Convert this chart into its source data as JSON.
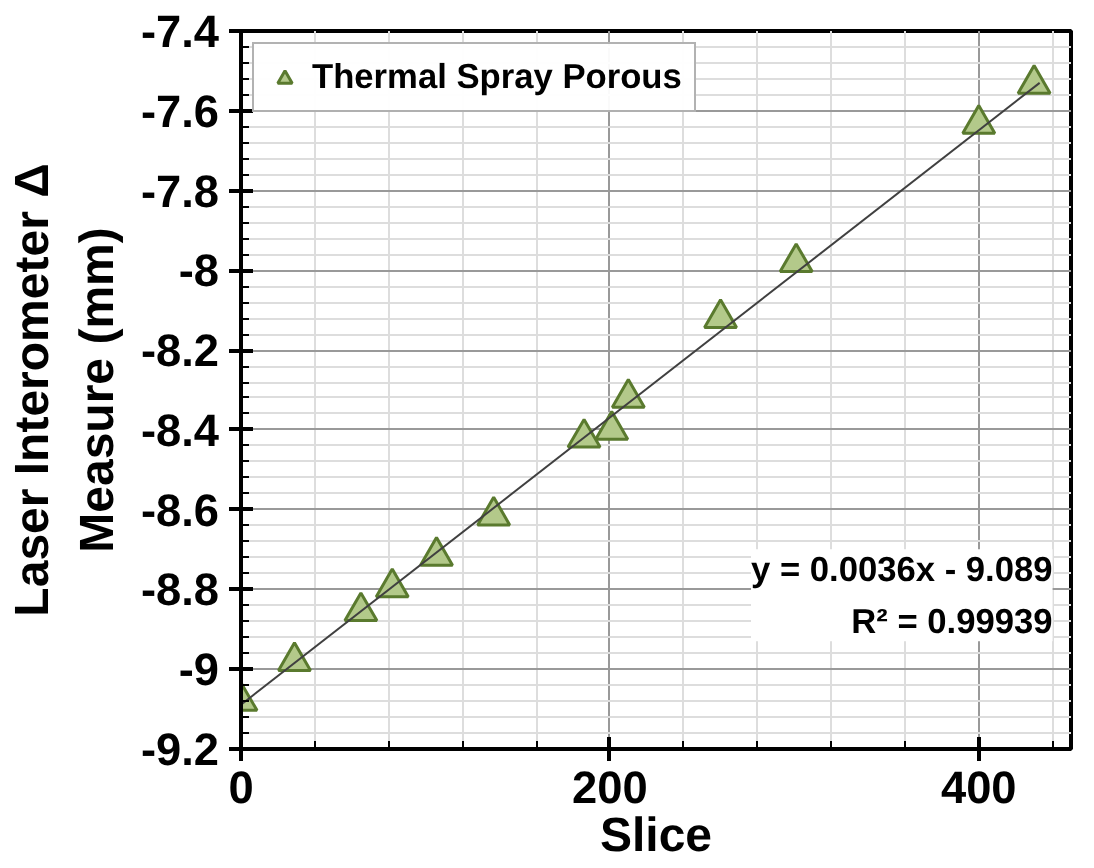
{
  "chart_data": {
    "type": "scatter",
    "xlabel": "Slice",
    "ylabel": "Laser Interometer Δ\nMeasure (mm)",
    "xlim": [
      0,
      450
    ],
    "ylim": [
      -9.2,
      -7.4
    ],
    "xticks": [
      0,
      200,
      400
    ],
    "yticks": [
      -9.2,
      -9,
      -8.8,
      -8.6,
      -8.4,
      -8.2,
      -8,
      -7.8,
      -7.6,
      -7.4
    ],
    "grid": true,
    "legend": "top left",
    "marker": "triangle",
    "series": [
      {
        "name": "Thermal Spray Porous",
        "color": "#b3c98a",
        "x": [
          0,
          29,
          65,
          82,
          106,
          137,
          186,
          201,
          210,
          260,
          301,
          400,
          430
        ],
        "values": [
          -9.08,
          -8.98,
          -8.855,
          -8.795,
          -8.716,
          -8.615,
          -8.42,
          -8.4,
          -8.32,
          -8.12,
          -7.98,
          -7.633,
          -7.533
        ]
      },
      {
        "type": "line",
        "marker": "none",
        "color": "#404040",
        "x": [
          0,
          433
        ],
        "values": [
          -9.089,
          -7.53
        ]
      }
    ],
    "annotations": [
      "y = 0.0036x - 9.089\nR² = 0.99939"
    ]
  }
}
